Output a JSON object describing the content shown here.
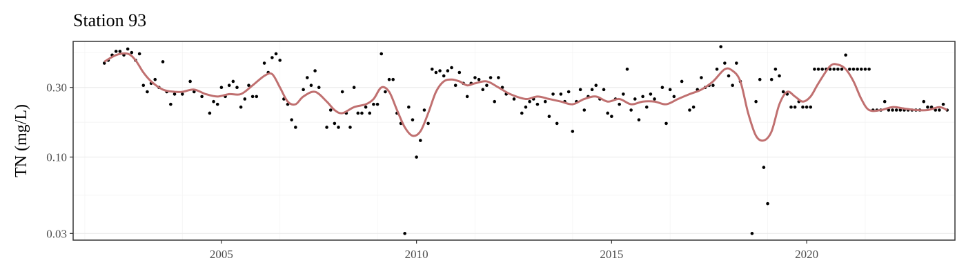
{
  "chart_data": {
    "type": "scatter",
    "title": "Station 93",
    "xlabel": "",
    "ylabel": "TN (mg/L)",
    "y_scale": "log",
    "xlim": [
      2001.2,
      2023.8
    ],
    "ylim": [
      0.027,
      0.62
    ],
    "x_ticks": [
      2005,
      2010,
      2015,
      2020
    ],
    "x_tick_labels": [
      "2005",
      "2010",
      "2015",
      "2020"
    ],
    "y_ticks": [
      0.03,
      0.1,
      0.3
    ],
    "y_tick_labels": [
      "0.03",
      "0.10",
      "0.30"
    ],
    "grid": true,
    "legend": "none",
    "colors": {
      "points": "#000000",
      "smooth": "#c07070",
      "grid": "#ebebeb",
      "panel_border": "#333333"
    },
    "series": [
      {
        "type": "scatter",
        "points": [
          [
            2002.0,
            0.44
          ],
          [
            2002.1,
            0.46
          ],
          [
            2002.2,
            0.5
          ],
          [
            2002.3,
            0.53
          ],
          [
            2002.4,
            0.53
          ],
          [
            2002.5,
            0.5
          ],
          [
            2002.6,
            0.55
          ],
          [
            2002.7,
            0.52
          ],
          [
            2002.8,
            0.46
          ],
          [
            2002.9,
            0.51
          ],
          [
            2003.0,
            0.31
          ],
          [
            2003.1,
            0.28
          ],
          [
            2003.2,
            0.32
          ],
          [
            2003.3,
            0.34
          ],
          [
            2003.4,
            0.3
          ],
          [
            2003.5,
            0.45
          ],
          [
            2003.6,
            0.28
          ],
          [
            2003.7,
            0.23
          ],
          [
            2003.8,
            0.27
          ],
          [
            2004.0,
            0.27
          ],
          [
            2004.2,
            0.33
          ],
          [
            2004.3,
            0.28
          ],
          [
            2004.5,
            0.26
          ],
          [
            2004.7,
            0.2
          ],
          [
            2004.8,
            0.24
          ],
          [
            2004.9,
            0.23
          ],
          [
            2005.0,
            0.3
          ],
          [
            2005.1,
            0.26
          ],
          [
            2005.2,
            0.31
          ],
          [
            2005.3,
            0.33
          ],
          [
            2005.4,
            0.3
          ],
          [
            2005.5,
            0.22
          ],
          [
            2005.6,
            0.25
          ],
          [
            2005.7,
            0.31
          ],
          [
            2005.8,
            0.26
          ],
          [
            2005.9,
            0.26
          ],
          [
            2006.1,
            0.44
          ],
          [
            2006.2,
            0.38
          ],
          [
            2006.3,
            0.48
          ],
          [
            2006.4,
            0.51
          ],
          [
            2006.5,
            0.46
          ],
          [
            2006.6,
            0.25
          ],
          [
            2006.7,
            0.23
          ],
          [
            2006.8,
            0.18
          ],
          [
            2006.9,
            0.16
          ],
          [
            2007.1,
            0.29
          ],
          [
            2007.2,
            0.35
          ],
          [
            2007.3,
            0.31
          ],
          [
            2007.4,
            0.39
          ],
          [
            2007.5,
            0.3
          ],
          [
            2007.7,
            0.16
          ],
          [
            2007.8,
            0.21
          ],
          [
            2007.9,
            0.17
          ],
          [
            2008.0,
            0.16
          ],
          [
            2008.1,
            0.28
          ],
          [
            2008.2,
            0.2
          ],
          [
            2008.3,
            0.16
          ],
          [
            2008.4,
            0.3
          ],
          [
            2008.5,
            0.2
          ],
          [
            2008.6,
            0.2
          ],
          [
            2008.7,
            0.22
          ],
          [
            2008.8,
            0.2
          ],
          [
            2008.9,
            0.23
          ],
          [
            2009.0,
            0.23
          ],
          [
            2009.1,
            0.51
          ],
          [
            2009.2,
            0.28
          ],
          [
            2009.3,
            0.34
          ],
          [
            2009.4,
            0.34
          ],
          [
            2009.5,
            0.2
          ],
          [
            2009.6,
            0.17
          ],
          [
            2009.7,
            0.03
          ],
          [
            2009.8,
            0.22
          ],
          [
            2009.9,
            0.18
          ],
          [
            2010.0,
            0.1
          ],
          [
            2010.1,
            0.13
          ],
          [
            2010.2,
            0.21
          ],
          [
            2010.3,
            0.17
          ],
          [
            2010.4,
            0.4
          ],
          [
            2010.5,
            0.38
          ],
          [
            2010.6,
            0.39
          ],
          [
            2010.7,
            0.36
          ],
          [
            2010.8,
            0.39
          ],
          [
            2010.9,
            0.41
          ],
          [
            2011.0,
            0.31
          ],
          [
            2011.1,
            0.38
          ],
          [
            2011.2,
            0.32
          ],
          [
            2011.3,
            0.26
          ],
          [
            2011.4,
            0.32
          ],
          [
            2011.5,
            0.35
          ],
          [
            2011.6,
            0.34
          ],
          [
            2011.7,
            0.29
          ],
          [
            2011.8,
            0.31
          ],
          [
            2011.9,
            0.35
          ],
          [
            2012.0,
            0.24
          ],
          [
            2012.1,
            0.35
          ],
          [
            2012.2,
            0.3
          ],
          [
            2012.3,
            0.27
          ],
          [
            2012.5,
            0.25
          ],
          [
            2012.7,
            0.2
          ],
          [
            2012.8,
            0.22
          ],
          [
            2012.9,
            0.24
          ],
          [
            2013.0,
            0.25
          ],
          [
            2013.1,
            0.23
          ],
          [
            2013.3,
            0.24
          ],
          [
            2013.4,
            0.19
          ],
          [
            2013.5,
            0.27
          ],
          [
            2013.6,
            0.17
          ],
          [
            2013.7,
            0.27
          ],
          [
            2013.8,
            0.24
          ],
          [
            2013.9,
            0.28
          ],
          [
            2014.0,
            0.15
          ],
          [
            2014.1,
            0.24
          ],
          [
            2014.2,
            0.29
          ],
          [
            2014.3,
            0.21
          ],
          [
            2014.4,
            0.26
          ],
          [
            2014.5,
            0.29
          ],
          [
            2014.6,
            0.31
          ],
          [
            2014.7,
            0.25
          ],
          [
            2014.8,
            0.29
          ],
          [
            2014.9,
            0.2
          ],
          [
            2015.0,
            0.19
          ],
          [
            2015.1,
            0.25
          ],
          [
            2015.2,
            0.23
          ],
          [
            2015.3,
            0.27
          ],
          [
            2015.4,
            0.4
          ],
          [
            2015.5,
            0.21
          ],
          [
            2015.6,
            0.25
          ],
          [
            2015.7,
            0.18
          ],
          [
            2015.8,
            0.26
          ],
          [
            2015.9,
            0.22
          ],
          [
            2016.0,
            0.27
          ],
          [
            2016.1,
            0.25
          ],
          [
            2016.3,
            0.3
          ],
          [
            2016.4,
            0.17
          ],
          [
            2016.5,
            0.29
          ],
          [
            2016.6,
            0.26
          ],
          [
            2016.8,
            0.33
          ],
          [
            2017.0,
            0.21
          ],
          [
            2017.1,
            0.22
          ],
          [
            2017.2,
            0.29
          ],
          [
            2017.3,
            0.35
          ],
          [
            2017.4,
            0.3
          ],
          [
            2017.5,
            0.31
          ],
          [
            2017.6,
            0.31
          ],
          [
            2017.7,
            0.4
          ],
          [
            2017.8,
            0.57
          ],
          [
            2017.9,
            0.44
          ],
          [
            2018.0,
            0.36
          ],
          [
            2018.1,
            0.31
          ],
          [
            2018.2,
            0.44
          ],
          [
            2018.3,
            0.33
          ],
          [
            2018.6,
            0.03
          ],
          [
            2018.7,
            0.24
          ],
          [
            2018.8,
            0.34
          ],
          [
            2018.9,
            0.085
          ],
          [
            2019.0,
            0.048
          ],
          [
            2019.1,
            0.34
          ],
          [
            2019.2,
            0.4
          ],
          [
            2019.3,
            0.36
          ],
          [
            2019.4,
            0.28
          ],
          [
            2019.5,
            0.27
          ],
          [
            2019.6,
            0.22
          ],
          [
            2019.7,
            0.22
          ],
          [
            2019.8,
            0.24
          ],
          [
            2019.9,
            0.22
          ],
          [
            2020.0,
            0.22
          ],
          [
            2020.1,
            0.22
          ],
          [
            2020.2,
            0.4
          ],
          [
            2020.3,
            0.4
          ],
          [
            2020.4,
            0.4
          ],
          [
            2020.5,
            0.4
          ],
          [
            2020.6,
            0.4
          ],
          [
            2020.7,
            0.4
          ],
          [
            2020.8,
            0.4
          ],
          [
            2020.9,
            0.4
          ],
          [
            2021.0,
            0.5
          ],
          [
            2021.1,
            0.4
          ],
          [
            2021.2,
            0.4
          ],
          [
            2021.3,
            0.4
          ],
          [
            2021.4,
            0.4
          ],
          [
            2021.5,
            0.4
          ],
          [
            2021.6,
            0.4
          ],
          [
            2021.7,
            0.21
          ],
          [
            2021.8,
            0.21
          ],
          [
            2021.9,
            0.21
          ],
          [
            2022.0,
            0.24
          ],
          [
            2022.1,
            0.21
          ],
          [
            2022.2,
            0.21
          ],
          [
            2022.3,
            0.21
          ],
          [
            2022.4,
            0.21
          ],
          [
            2022.5,
            0.21
          ],
          [
            2022.6,
            0.21
          ],
          [
            2022.7,
            0.21
          ],
          [
            2022.8,
            0.21
          ],
          [
            2022.9,
            0.21
          ],
          [
            2023.0,
            0.24
          ],
          [
            2023.1,
            0.22
          ],
          [
            2023.2,
            0.22
          ],
          [
            2023.3,
            0.21
          ],
          [
            2023.4,
            0.21
          ],
          [
            2023.5,
            0.23
          ],
          [
            2023.6,
            0.21
          ]
        ]
      },
      {
        "type": "line",
        "points": [
          [
            2002.0,
            0.45
          ],
          [
            2002.3,
            0.5
          ],
          [
            2002.6,
            0.51
          ],
          [
            2002.8,
            0.46
          ],
          [
            2003.0,
            0.38
          ],
          [
            2003.2,
            0.33
          ],
          [
            2003.5,
            0.29
          ],
          [
            2003.8,
            0.28
          ],
          [
            2004.0,
            0.28
          ],
          [
            2004.3,
            0.29
          ],
          [
            2004.6,
            0.27
          ],
          [
            2004.9,
            0.26
          ],
          [
            2005.2,
            0.27
          ],
          [
            2005.5,
            0.27
          ],
          [
            2005.8,
            0.31
          ],
          [
            2006.1,
            0.36
          ],
          [
            2006.3,
            0.37
          ],
          [
            2006.5,
            0.3
          ],
          [
            2006.7,
            0.24
          ],
          [
            2006.9,
            0.23
          ],
          [
            2007.1,
            0.26
          ],
          [
            2007.4,
            0.28
          ],
          [
            2007.7,
            0.24
          ],
          [
            2007.9,
            0.21
          ],
          [
            2008.1,
            0.2
          ],
          [
            2008.4,
            0.22
          ],
          [
            2008.7,
            0.23
          ],
          [
            2008.9,
            0.25
          ],
          [
            2009.1,
            0.3
          ],
          [
            2009.3,
            0.28
          ],
          [
            2009.5,
            0.21
          ],
          [
            2009.7,
            0.16
          ],
          [
            2009.9,
            0.14
          ],
          [
            2010.1,
            0.15
          ],
          [
            2010.3,
            0.2
          ],
          [
            2010.5,
            0.28
          ],
          [
            2010.7,
            0.33
          ],
          [
            2010.9,
            0.34
          ],
          [
            2011.1,
            0.33
          ],
          [
            2011.3,
            0.31
          ],
          [
            2011.5,
            0.32
          ],
          [
            2011.8,
            0.33
          ],
          [
            2012.1,
            0.3
          ],
          [
            2012.4,
            0.27
          ],
          [
            2012.8,
            0.25
          ],
          [
            2013.1,
            0.26
          ],
          [
            2013.4,
            0.25
          ],
          [
            2013.7,
            0.24
          ],
          [
            2014.0,
            0.23
          ],
          [
            2014.3,
            0.25
          ],
          [
            2014.6,
            0.26
          ],
          [
            2014.9,
            0.24
          ],
          [
            2015.2,
            0.25
          ],
          [
            2015.5,
            0.23
          ],
          [
            2015.8,
            0.24
          ],
          [
            2016.1,
            0.24
          ],
          [
            2016.4,
            0.23
          ],
          [
            2016.7,
            0.25
          ],
          [
            2017.0,
            0.27
          ],
          [
            2017.3,
            0.29
          ],
          [
            2017.6,
            0.33
          ],
          [
            2017.9,
            0.4
          ],
          [
            2018.1,
            0.39
          ],
          [
            2018.3,
            0.33
          ],
          [
            2018.5,
            0.2
          ],
          [
            2018.7,
            0.14
          ],
          [
            2018.9,
            0.13
          ],
          [
            2019.1,
            0.15
          ],
          [
            2019.3,
            0.23
          ],
          [
            2019.5,
            0.28
          ],
          [
            2019.7,
            0.26
          ],
          [
            2019.9,
            0.24
          ],
          [
            2020.1,
            0.26
          ],
          [
            2020.3,
            0.32
          ],
          [
            2020.6,
            0.42
          ],
          [
            2020.8,
            0.43
          ],
          [
            2021.0,
            0.4
          ],
          [
            2021.2,
            0.33
          ],
          [
            2021.4,
            0.25
          ],
          [
            2021.6,
            0.21
          ],
          [
            2021.9,
            0.21
          ],
          [
            2022.2,
            0.22
          ],
          [
            2022.5,
            0.215
          ],
          [
            2022.8,
            0.21
          ],
          [
            2023.1,
            0.21
          ],
          [
            2023.4,
            0.22
          ],
          [
            2023.6,
            0.21
          ]
        ]
      }
    ]
  }
}
